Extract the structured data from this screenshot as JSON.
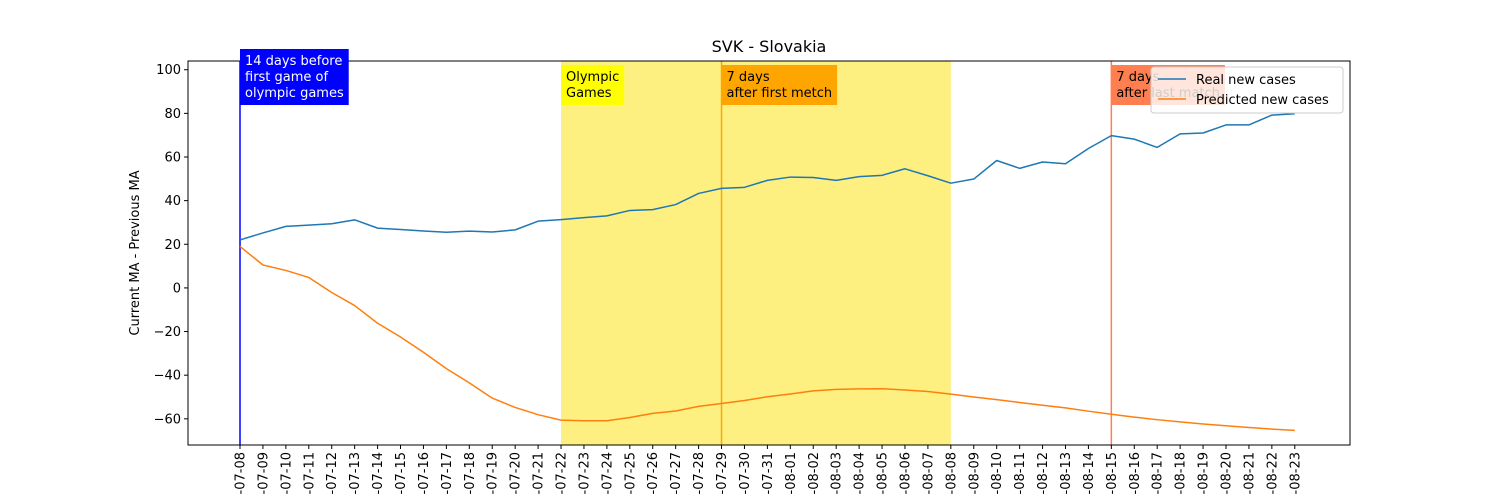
{
  "chart_data": {
    "type": "line",
    "title": "SVK - Slovakia",
    "ylabel": "Current MA - Previous MA",
    "xlabel": "",
    "ylim": [
      -72,
      104
    ],
    "y_ticks": [
      -60,
      -40,
      -20,
      0,
      20,
      40,
      60,
      80,
      100
    ],
    "x": [
      "2021-07-08",
      "2021-07-09",
      "2021-07-10",
      "2021-07-11",
      "2021-07-12",
      "2021-07-13",
      "2021-07-14",
      "2021-07-15",
      "2021-07-16",
      "2021-07-17",
      "2021-07-18",
      "2021-07-19",
      "2021-07-20",
      "2021-07-21",
      "2021-07-22",
      "2021-07-23",
      "2021-07-24",
      "2021-07-25",
      "2021-07-26",
      "2021-07-27",
      "2021-07-28",
      "2021-07-29",
      "2021-07-30",
      "2021-07-31",
      "2021-08-01",
      "2021-08-02",
      "2021-08-03",
      "2021-08-04",
      "2021-08-05",
      "2021-08-06",
      "2021-08-07",
      "2021-08-08",
      "2021-08-09",
      "2021-08-10",
      "2021-08-11",
      "2021-08-12",
      "2021-08-13",
      "2021-08-14",
      "2021-08-15",
      "2021-08-16",
      "2021-08-17",
      "2021-08-18",
      "2021-08-19",
      "2021-08-20",
      "2021-08-21",
      "2021-08-22",
      "2021-08-23"
    ],
    "x_tick_labels": [
      "-07-08",
      "-07-09",
      "-07-10",
      "-07-11",
      "-07-12",
      "-07-13",
      "-07-14",
      "-07-15",
      "-07-16",
      "-07-17",
      "-07-18",
      "-07-19",
      "-07-20",
      "-07-21",
      "-07-22",
      "-07-23",
      "-07-24",
      "-07-25",
      "-07-26",
      "-07-27",
      "-07-28",
      "-07-29",
      "-07-30",
      "-07-31",
      "-08-01",
      "-08-02",
      "-08-03",
      "-08-04",
      "-08-05",
      "-08-06",
      "-08-07",
      "-08-08",
      "-08-09",
      "-08-10",
      "-08-11",
      "-08-12",
      "-08-13",
      "-08-14",
      "-08-15",
      "-08-16",
      "-08-17",
      "-08-18",
      "-08-19",
      "-08-20",
      "-08-21",
      "-08-22",
      "-08-23"
    ],
    "series": [
      {
        "name": "Real new cases",
        "color": "#1f77b4",
        "values": [
          22,
          25.2,
          28.2,
          28.8,
          29.4,
          31.2,
          27.4,
          26.8,
          26.1,
          25.5,
          26.0,
          25.6,
          26.6,
          30.6,
          31.3,
          32.2,
          33.0,
          35.5,
          35.9,
          38.2,
          43.3,
          45.6,
          46.1,
          49.3,
          50.8,
          50.6,
          49.3,
          51.0,
          51.6,
          54.6,
          51.4,
          48.0,
          49.9,
          58.4,
          54.8,
          57.7,
          56.9,
          63.9,
          69.8,
          68.2,
          64.4,
          70.6,
          71.0,
          74.7,
          74.7,
          79.2,
          79.8
        ]
      },
      {
        "name": "Predicted new cases",
        "color": "#ff7f0e",
        "values": [
          19,
          10.5,
          8.0,
          4.8,
          -2.1,
          -8.1,
          -16.2,
          -22.5,
          -29.5,
          -37.0,
          -43.5,
          -50.5,
          -54.8,
          -58.1,
          -60.6,
          -60.9,
          -60.9,
          -59.4,
          -57.5,
          -56.4,
          -54.3,
          -53.0,
          -51.6,
          -49.9,
          -48.6,
          -47.2,
          -46.5,
          -46.3,
          -46.2,
          -46.8,
          -47.5,
          -48.7,
          -50.0,
          -51.2,
          -52.5,
          -53.8,
          -55.0,
          -56.5,
          -57.9,
          -59.2,
          -60.4,
          -61.4,
          -62.4,
          -63.2,
          -64.0,
          -64.7,
          -65.3
        ]
      }
    ],
    "shaded_region": {
      "start": "2021-07-22",
      "end": "2021-08-08",
      "color": "#fdf081"
    },
    "vlines": [
      {
        "x": "2021-07-08",
        "color": "#0000ff"
      },
      {
        "x": "2021-07-29",
        "color": "#ffa500"
      },
      {
        "x": "2021-08-15",
        "color": "#ff7f50"
      }
    ],
    "annotations": [
      {
        "x": "2021-07-08",
        "lines": [
          "14 days before",
          "first game of",
          "olympic games"
        ],
        "bg": "#0000ff",
        "fg": "#ffffff"
      },
      {
        "x": "2021-07-22",
        "lines": [
          "Olympic",
          "Games"
        ],
        "bg": "#ffff00",
        "fg": "#000000"
      },
      {
        "x": "2021-07-29",
        "lines": [
          "7 days",
          "after first metch"
        ],
        "bg": "#ffa500",
        "fg": "#000000"
      },
      {
        "x": "2021-08-15",
        "lines": [
          "7 days",
          "after last match"
        ],
        "bg": "#ff7f50",
        "fg": "#000000"
      }
    ],
    "legend": {
      "position": "top-right",
      "entries": [
        "Real new cases",
        "Predicted new cases"
      ]
    },
    "grid": false
  }
}
